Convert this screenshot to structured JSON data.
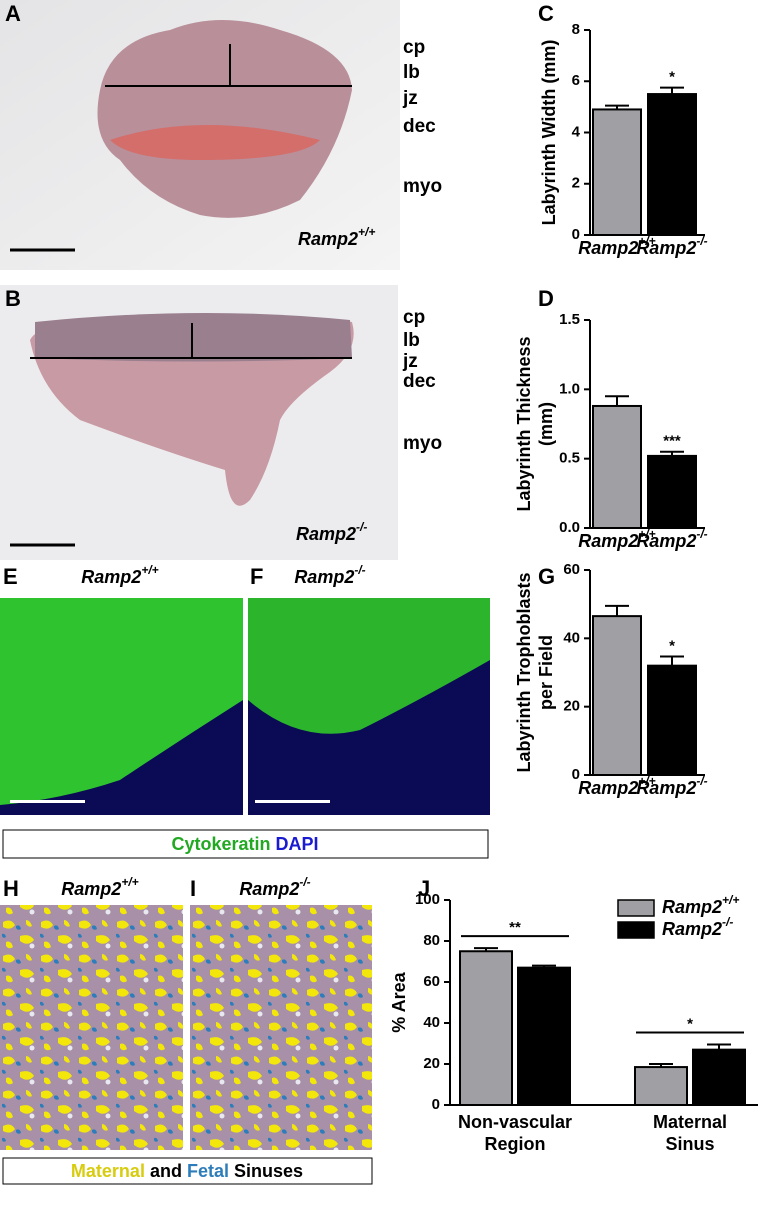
{
  "panels": {
    "A": "A",
    "B": "B",
    "C": "C",
    "D": "D",
    "E": "E",
    "F": "F",
    "G": "G",
    "H": "H",
    "I": "I",
    "J": "J"
  },
  "images": {
    "A": {
      "zones": [
        "cp",
        "lb",
        "jz",
        "dec",
        "myo"
      ],
      "genotype": "Ramp2+/+"
    },
    "B": {
      "zones": [
        "cp",
        "lb",
        "jz",
        "dec",
        "myo"
      ],
      "genotype": "Ramp2-/-"
    },
    "E": {
      "genotype": "Ramp2+/+"
    },
    "F": {
      "genotype": "Ramp2-/-"
    },
    "H": {
      "genotype": "Ramp2+/+"
    },
    "I": {
      "genotype": "Ramp2-/-"
    }
  },
  "captions": {
    "fluorescence": [
      "Cytokeratin",
      "DAPI"
    ],
    "sinuses": [
      "Maternal",
      "and",
      "Fetal",
      "Sinuses"
    ]
  },
  "chart_data": [
    {
      "type": "bar",
      "ylabel": [
        "Labyrinth Width (mm)"
      ],
      "categories": [
        "Ramp2+/+",
        "Ramp2-/-"
      ],
      "values": [
        4.9,
        5.5
      ],
      "errors": [
        0.15,
        0.25
      ],
      "colors": [
        "#a0a0a4",
        "#000000"
      ],
      "ylim": [
        0,
        8
      ],
      "yticks": [
        0,
        2,
        4,
        6,
        8
      ],
      "annotations": [
        "*"
      ]
    },
    {
      "type": "bar",
      "ylabel": [
        "Labyrinth Thickness",
        "(mm)"
      ],
      "categories": [
        "Ramp2+/+",
        "Ramp2-/-"
      ],
      "values": [
        0.88,
        0.52
      ],
      "errors": [
        0.07,
        0.03
      ],
      "colors": [
        "#a0a0a4",
        "#000000"
      ],
      "ylim": [
        0,
        1.5
      ],
      "yticks": [
        {
          "value": 0,
          "label": "0.0"
        },
        0.5,
        {
          "value": 1,
          "label": "1.0"
        },
        1.5
      ],
      "annotations": [
        "***"
      ]
    },
    {
      "type": "bar",
      "ylabel": [
        "Labyrinth Trophoblasts",
        "per Field"
      ],
      "categories": [
        "Ramp2+/+",
        "Ramp2-/-"
      ],
      "values": [
        46.5,
        32
      ],
      "errors": [
        3,
        2.7
      ],
      "colors": [
        "#a0a0a4",
        "#000000"
      ],
      "ylim": [
        0,
        60
      ],
      "yticks": [
        0,
        20,
        40,
        60
      ],
      "annotations": [
        "*"
      ]
    },
    {
      "type": "grouped_bar",
      "ylabel": [
        "% Area"
      ],
      "categories": [
        [
          "Non-vascular",
          "Region"
        ],
        [
          "Maternal",
          "Sinus"
        ]
      ],
      "series": [
        {
          "name": "Ramp2+/+",
          "color": "#a0a0a4",
          "values": [
            75,
            18.5
          ],
          "errors": [
            1.5,
            1.5
          ]
        },
        {
          "name": "Ramp2-/-",
          "color": "#000000",
          "values": [
            67,
            27
          ],
          "errors": [
            1,
            2.5
          ]
        }
      ],
      "ylim": [
        0,
        100
      ],
      "yticks": [
        0,
        20,
        40,
        60,
        80,
        100
      ],
      "annotations": [
        "**",
        "*"
      ],
      "legend": "top-right"
    }
  ]
}
